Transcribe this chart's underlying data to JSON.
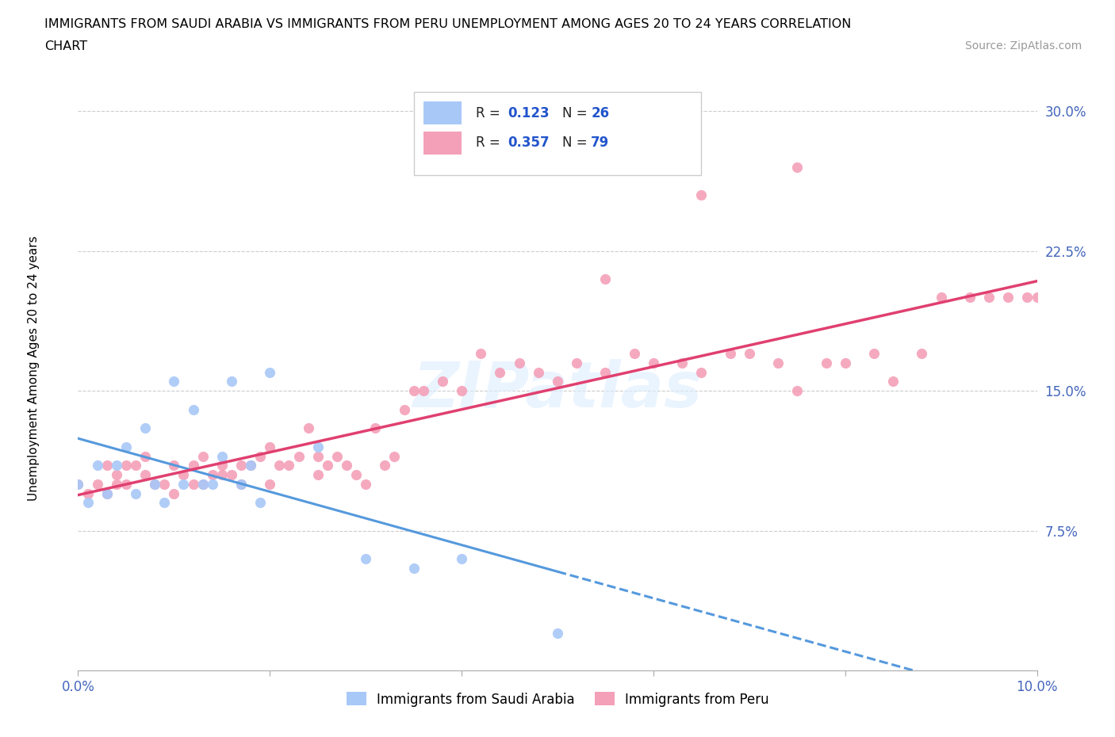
{
  "title_line1": "IMMIGRANTS FROM SAUDI ARABIA VS IMMIGRANTS FROM PERU UNEMPLOYMENT AMONG AGES 20 TO 24 YEARS CORRELATION",
  "title_line2": "CHART",
  "source": "Source: ZipAtlas.com",
  "ylabel": "Unemployment Among Ages 20 to 24 years",
  "xlim": [
    0.0,
    0.1
  ],
  "ylim": [
    0.0,
    0.32
  ],
  "R_saudi": 0.123,
  "N_saudi": 26,
  "R_peru": 0.357,
  "N_peru": 79,
  "saudi_color": "#a8c8f8",
  "peru_color": "#f4a0b8",
  "saudi_line_color": "#5599dd",
  "peru_line_color": "#e04070",
  "saudi_scatter_x": [
    0.0,
    0.001,
    0.002,
    0.003,
    0.004,
    0.005,
    0.006,
    0.007,
    0.008,
    0.009,
    0.01,
    0.011,
    0.012,
    0.013,
    0.014,
    0.015,
    0.016,
    0.017,
    0.018,
    0.019,
    0.02,
    0.025,
    0.03,
    0.035,
    0.04,
    0.05
  ],
  "saudi_scatter_y": [
    0.1,
    0.09,
    0.11,
    0.095,
    0.11,
    0.12,
    0.095,
    0.13,
    0.1,
    0.09,
    0.155,
    0.1,
    0.14,
    0.1,
    0.1,
    0.115,
    0.155,
    0.1,
    0.11,
    0.09,
    0.16,
    0.12,
    0.06,
    0.055,
    0.06,
    0.02
  ],
  "peru_scatter_x": [
    0.0,
    0.001,
    0.002,
    0.003,
    0.003,
    0.004,
    0.004,
    0.005,
    0.005,
    0.006,
    0.007,
    0.007,
    0.008,
    0.009,
    0.01,
    0.01,
    0.011,
    0.012,
    0.012,
    0.013,
    0.013,
    0.014,
    0.015,
    0.015,
    0.016,
    0.017,
    0.017,
    0.018,
    0.019,
    0.02,
    0.02,
    0.021,
    0.022,
    0.023,
    0.024,
    0.025,
    0.025,
    0.026,
    0.027,
    0.028,
    0.029,
    0.03,
    0.031,
    0.032,
    0.033,
    0.034,
    0.035,
    0.036,
    0.038,
    0.04,
    0.042,
    0.044,
    0.046,
    0.048,
    0.05,
    0.052,
    0.055,
    0.058,
    0.06,
    0.063,
    0.065,
    0.068,
    0.07,
    0.073,
    0.075,
    0.078,
    0.08,
    0.083,
    0.085,
    0.088,
    0.09,
    0.093,
    0.095,
    0.097,
    0.099,
    0.1,
    0.075,
    0.065,
    0.055
  ],
  "peru_scatter_y": [
    0.1,
    0.095,
    0.1,
    0.11,
    0.095,
    0.105,
    0.1,
    0.1,
    0.11,
    0.11,
    0.105,
    0.115,
    0.1,
    0.1,
    0.095,
    0.11,
    0.105,
    0.1,
    0.11,
    0.1,
    0.115,
    0.105,
    0.105,
    0.11,
    0.105,
    0.11,
    0.1,
    0.11,
    0.115,
    0.1,
    0.12,
    0.11,
    0.11,
    0.115,
    0.13,
    0.105,
    0.115,
    0.11,
    0.115,
    0.11,
    0.105,
    0.1,
    0.13,
    0.11,
    0.115,
    0.14,
    0.15,
    0.15,
    0.155,
    0.15,
    0.17,
    0.16,
    0.165,
    0.16,
    0.155,
    0.165,
    0.16,
    0.17,
    0.165,
    0.165,
    0.16,
    0.17,
    0.17,
    0.165,
    0.15,
    0.165,
    0.165,
    0.17,
    0.155,
    0.17,
    0.2,
    0.2,
    0.2,
    0.2,
    0.2,
    0.2,
    0.27,
    0.255,
    0.21
  ]
}
